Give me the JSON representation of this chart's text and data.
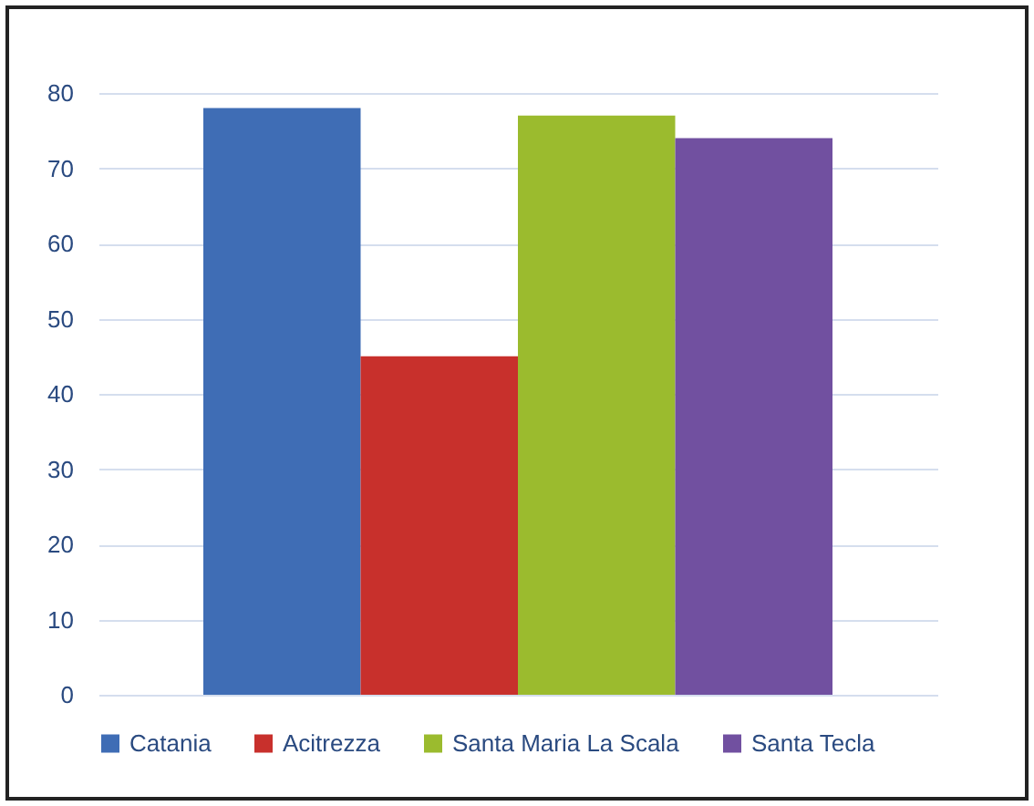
{
  "chart_data": {
    "type": "bar",
    "categories": [
      null
    ],
    "series": [
      {
        "name": "Catania",
        "color": "#3f6db5",
        "values": [
          78
        ]
      },
      {
        "name": "Acitrezza",
        "color": "#c8302c",
        "values": [
          45
        ]
      },
      {
        "name": "Santa Maria La Scala",
        "color": "#9bbb2e",
        "values": [
          77
        ]
      },
      {
        "name": "Santa Tecla",
        "color": "#7150a0",
        "values": [
          74
        ]
      }
    ],
    "ylim": [
      0,
      80
    ],
    "yticks": [
      0,
      10,
      20,
      30,
      40,
      50,
      60,
      70,
      80
    ],
    "grid": "y",
    "legend": "bottom"
  }
}
